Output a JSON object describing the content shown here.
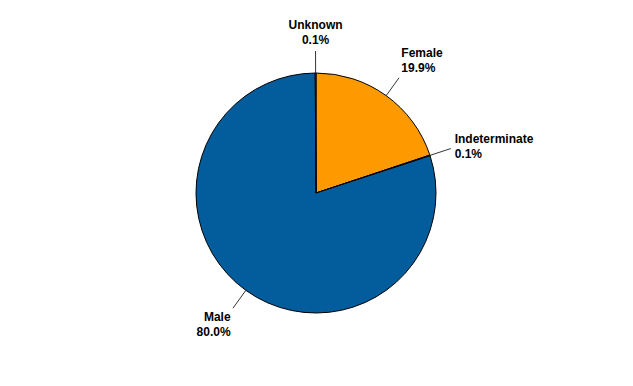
{
  "chart_data": {
    "type": "pie",
    "categories": [
      "Female",
      "Indeterminate",
      "Male",
      "Unknown"
    ],
    "values": [
      19.9,
      0.1,
      80.0,
      0.1
    ],
    "value_labels": [
      "19.9%",
      "0.1%",
      "80.0%",
      "0.1%"
    ],
    "colors": [
      "#ff9900",
      "#c8c8c8",
      "#035c9c",
      "#99c2e6"
    ],
    "data_labels": true
  }
}
